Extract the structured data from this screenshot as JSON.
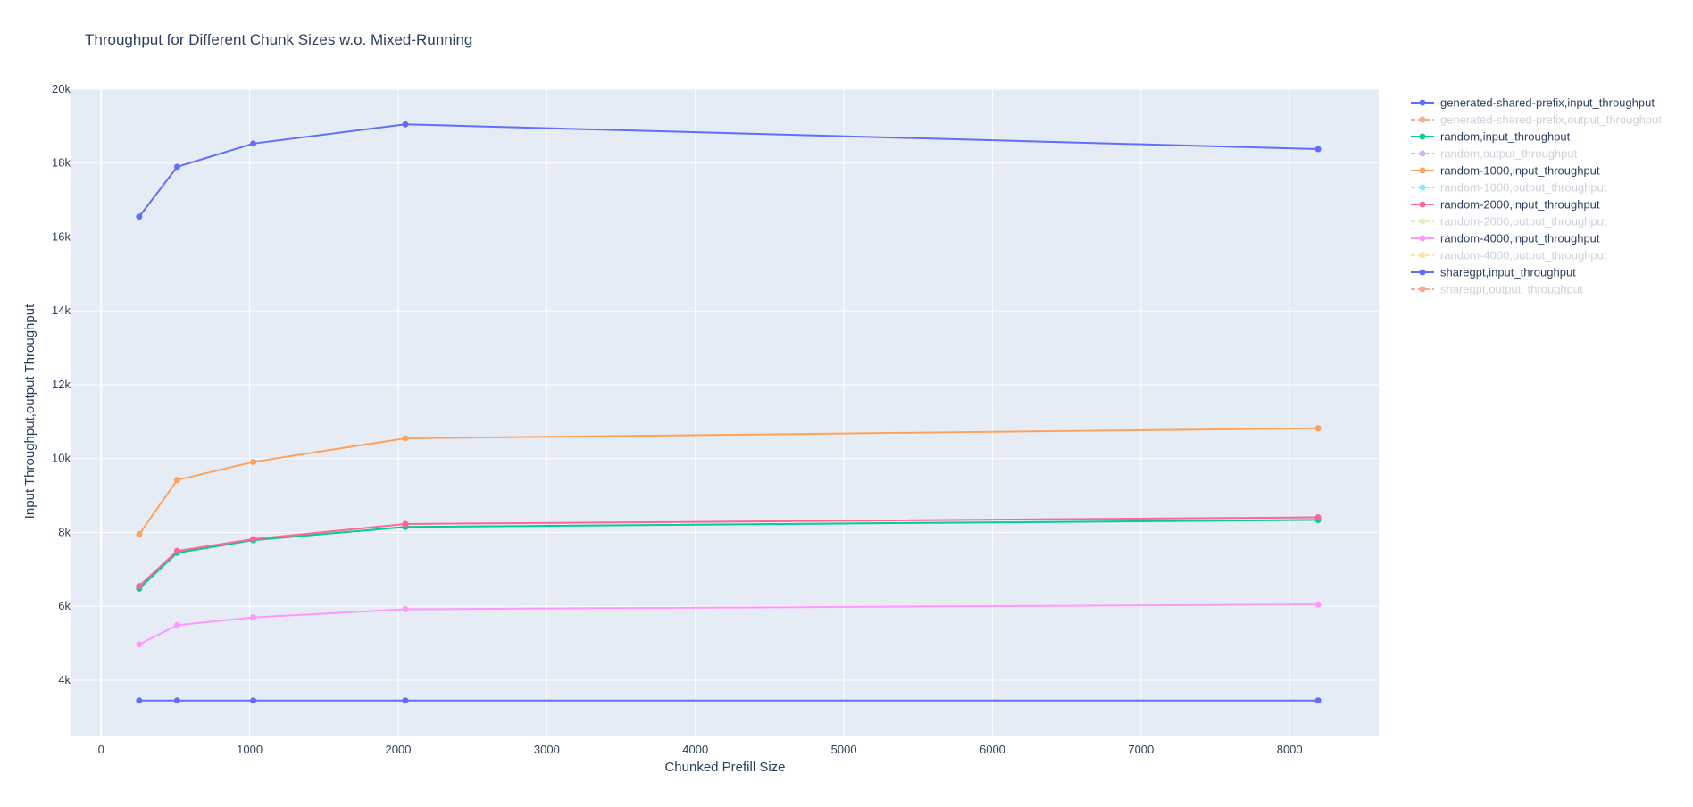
{
  "chart_data": {
    "type": "line",
    "title": "Throughput for Different Chunk Sizes w.o. Mixed-Running",
    "xlabel": "Chunked Prefill Size",
    "ylabel": "Input Throughput,output Throughput",
    "xlim": [
      -200,
      8600
    ],
    "ylim": [
      2500,
      20000
    ],
    "x_ticks": [
      0,
      1000,
      2000,
      3000,
      4000,
      5000,
      6000,
      7000,
      8000
    ],
    "x_tick_labels": [
      "0",
      "1000",
      "2000",
      "3000",
      "4000",
      "5000",
      "6000",
      "7000",
      "8000"
    ],
    "y_ticks": [
      4000,
      6000,
      8000,
      10000,
      12000,
      14000,
      16000,
      18000,
      20000
    ],
    "y_tick_labels": [
      "4k",
      "6k",
      "8k",
      "10k",
      "12k",
      "14k",
      "16k",
      "18k",
      "20k"
    ],
    "grid": true,
    "legend_position": "right",
    "plot_bgcolor": "#e5ecf6",
    "series": [
      {
        "name": "generated-shared-prefix,input_throughput",
        "color": "#636efa",
        "visible": true,
        "x": [
          256,
          512,
          1024,
          2048,
          8192
        ],
        "y": [
          16550,
          17900,
          18530,
          19050,
          18380
        ]
      },
      {
        "name": "generated-shared-prefix,output_throughput",
        "color": "#EF553B",
        "visible": false,
        "x": [],
        "y": []
      },
      {
        "name": "random,input_throughput",
        "color": "#00cc96",
        "visible": true,
        "x": [
          256,
          512,
          1024,
          2048,
          8192
        ],
        "y": [
          6480,
          7450,
          7790,
          8150,
          8340
        ]
      },
      {
        "name": "random,output_throughput",
        "color": "#ab63fa",
        "visible": false,
        "x": [],
        "y": []
      },
      {
        "name": "random-1000,input_throughput",
        "color": "#FFA15A",
        "visible": true,
        "x": [
          256,
          512,
          1024,
          2048,
          8192
        ],
        "y": [
          7950,
          9420,
          9910,
          10550,
          10820
        ]
      },
      {
        "name": "random-1000,output_throughput",
        "color": "#19d3f3",
        "visible": false,
        "x": [],
        "y": []
      },
      {
        "name": "random-2000,input_throughput",
        "color": "#FF6692",
        "visible": true,
        "x": [
          256,
          512,
          1024,
          2048,
          8192
        ],
        "y": [
          6550,
          7500,
          7820,
          8230,
          8410
        ]
      },
      {
        "name": "random-2000,output_throughput",
        "color": "#B6E880",
        "visible": false,
        "x": [],
        "y": []
      },
      {
        "name": "random-4000,input_throughput",
        "color": "#FF97FF",
        "visible": true,
        "x": [
          256,
          512,
          1024,
          2048,
          8192
        ],
        "y": [
          4970,
          5490,
          5700,
          5920,
          6050
        ]
      },
      {
        "name": "random-4000,output_throughput",
        "color": "#FECB52",
        "visible": false,
        "x": [],
        "y": []
      },
      {
        "name": "sharegpt,input_throughput",
        "color": "#636efa",
        "visible": true,
        "x": [
          256,
          512,
          1024,
          2048,
          8192
        ],
        "y": [
          3450,
          3450,
          3450,
          3450,
          3450
        ]
      },
      {
        "name": "sharegpt,output_throughput",
        "color": "#EF553B",
        "visible": false,
        "x": [],
        "y": []
      }
    ]
  }
}
